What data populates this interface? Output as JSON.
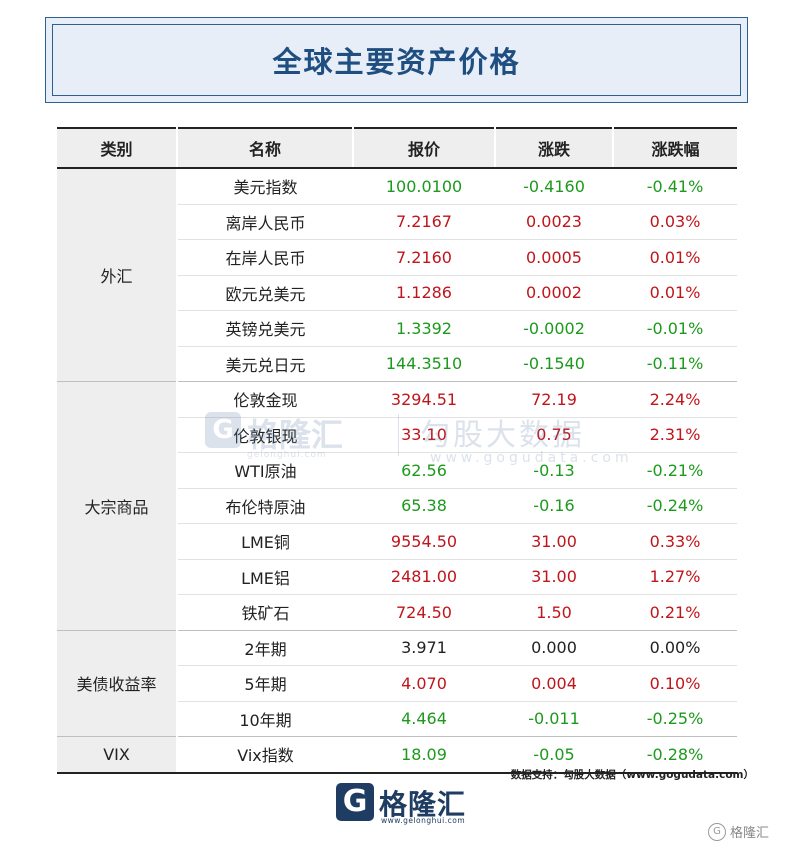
{
  "title": "全球主要资产价格",
  "headers": [
    "类别",
    "名称",
    "报价",
    "涨跌",
    "涨跌幅"
  ],
  "groups": [
    {
      "category": "外汇",
      "rows": [
        {
          "name": "美元指数",
          "price": "100.0100",
          "change": "-0.4160",
          "pct": "-0.41%",
          "dir": "down"
        },
        {
          "name": "离岸人民币",
          "price": "7.2167",
          "change": "0.0023",
          "pct": "0.03%",
          "dir": "up"
        },
        {
          "name": "在岸人民币",
          "price": "7.2160",
          "change": "0.0005",
          "pct": "0.01%",
          "dir": "up"
        },
        {
          "name": "欧元兑美元",
          "price": "1.1286",
          "change": "0.0002",
          "pct": "0.01%",
          "dir": "up"
        },
        {
          "name": "英镑兑美元",
          "price": "1.3392",
          "change": "-0.0002",
          "pct": "-0.01%",
          "dir": "down"
        },
        {
          "name": "美元兑日元",
          "price": "144.3510",
          "change": "-0.1540",
          "pct": "-0.11%",
          "dir": "down"
        }
      ]
    },
    {
      "category": "大宗商品",
      "rows": [
        {
          "name": "伦敦金现",
          "price": "3294.51",
          "change": "72.19",
          "pct": "2.24%",
          "dir": "up"
        },
        {
          "name": "伦敦银现",
          "price": "33.10",
          "change": "0.75",
          "pct": "2.31%",
          "dir": "up"
        },
        {
          "name": "WTI原油",
          "price": "62.56",
          "change": "-0.13",
          "pct": "-0.21%",
          "dir": "down"
        },
        {
          "name": "布伦特原油",
          "price": "65.38",
          "change": "-0.16",
          "pct": "-0.24%",
          "dir": "down"
        },
        {
          "name": "LME铜",
          "price": "9554.50",
          "change": "31.00",
          "pct": "0.33%",
          "dir": "up"
        },
        {
          "name": "LME铝",
          "price": "2481.00",
          "change": "31.00",
          "pct": "1.27%",
          "dir": "up"
        },
        {
          "name": "铁矿石",
          "price": "724.50",
          "change": "1.50",
          "pct": "0.21%",
          "dir": "up"
        }
      ]
    },
    {
      "category": "美债收益率",
      "rows": [
        {
          "name": "2年期",
          "price": "3.971",
          "change": "0.000",
          "pct": "0.00%",
          "dir": "flat"
        },
        {
          "name": "5年期",
          "price": "4.070",
          "change": "0.004",
          "pct": "0.10%",
          "dir": "up"
        },
        {
          "name": "10年期",
          "price": "4.464",
          "change": "-0.011",
          "pct": "-0.25%",
          "dir": "down"
        }
      ]
    },
    {
      "category": "VIX",
      "rows": [
        {
          "name": "Vix指数",
          "price": "18.09",
          "change": "-0.05",
          "pct": "-0.28%",
          "dir": "down"
        }
      ]
    }
  ],
  "watermark": {
    "left_cn": "格隆汇",
    "left_url": "gelonghui.com",
    "right_cn": "勾股大数据",
    "right_url": "www.gogudata.com"
  },
  "source": "数据支持：勾股大数据（www.gogudata.com）",
  "logo": {
    "cn": "格隆汇",
    "url": "www.gelonghui.com"
  },
  "corner_brand": "格隆汇",
  "colors": {
    "up": "#c0151b",
    "down": "#1c9a1c",
    "title": "#1f4e80"
  }
}
